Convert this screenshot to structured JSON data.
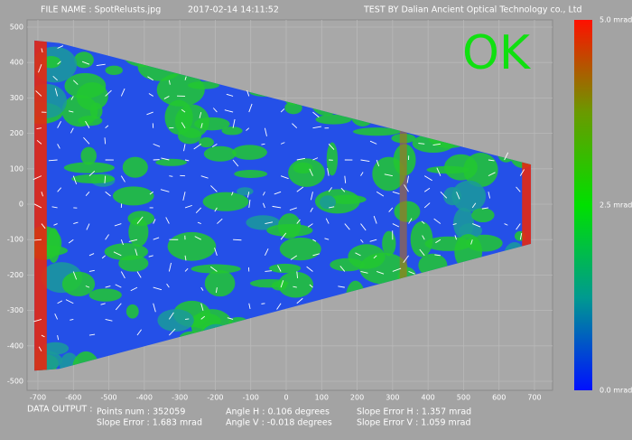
{
  "header": {
    "file_name": "FILE NAME : SpotRelusts.jpg",
    "datetime": "2017-02-14 14:11:52",
    "tester": "TEST BY Dalian Ancient Optical Technology co., Ltd"
  },
  "status": "OK",
  "axes": {
    "x_ticks": [
      -700,
      -600,
      -500,
      -400,
      -300,
      -200,
      -100,
      0,
      100,
      200,
      300,
      400,
      500,
      600,
      700
    ],
    "y_ticks": [
      500,
      400,
      300,
      200,
      100,
      0,
      -100,
      -200,
      -300,
      -400,
      -500
    ]
  },
  "colorbar": {
    "top": "5.0 mrad",
    "middle": "2.5 mrad",
    "bottom": "0.0 mrad"
  },
  "data_output": {
    "label": "DATA OUTPUT :",
    "points_num": "Points num : 352059",
    "slope_error": "Slope Error : 1.683 mrad",
    "angle_h": "Angle H : 0.106 degrees",
    "angle_v": "Angle V : -0.018 degrees",
    "slope_error_h": "Slope Error H : 1.357 mrad",
    "slope_error_v": "Slope Error V : 1.059 mrad"
  }
}
